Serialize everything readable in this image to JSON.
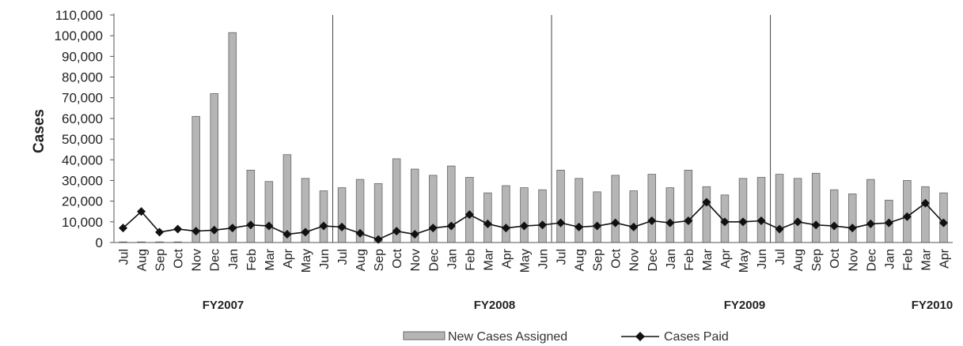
{
  "chart_data": {
    "type": "bar",
    "title": "",
    "xlabel": "",
    "ylabel": "Cases",
    "ylim": [
      0,
      110000
    ],
    "y_ticks": [
      "0",
      "10,000",
      "20,000",
      "30,000",
      "40,000",
      "50,000",
      "60,000",
      "70,000",
      "80,000",
      "90,000",
      "100,000",
      "110,000"
    ],
    "y_tick_values": [
      0,
      10000,
      20000,
      30000,
      40000,
      50000,
      60000,
      70000,
      80000,
      90000,
      100000,
      110000
    ],
    "categories": [
      "Jul",
      "Aug",
      "Sep",
      "Oct",
      "Nov",
      "Dec",
      "Jan",
      "Feb",
      "Mar",
      "Apr",
      "May",
      "Jun",
      "Jul",
      "Aug",
      "Sep",
      "Oct",
      "Nov",
      "Dec",
      "Jan",
      "Feb",
      "Mar",
      "Apr",
      "May",
      "Jun",
      "Jul",
      "Aug",
      "Sep",
      "Oct",
      "Nov",
      "Dec",
      "Jan",
      "Feb",
      "Mar",
      "Apr",
      "May",
      "Jun",
      "Jul",
      "Aug",
      "Sep",
      "Oct",
      "Nov",
      "Dec",
      "Jan",
      "Feb",
      "Mar",
      "Apr"
    ],
    "fiscal_years": [
      {
        "label": "FY2007",
        "start": 0,
        "end": 11
      },
      {
        "label": "FY2008",
        "start": 12,
        "end": 23
      },
      {
        "label": "FY2009",
        "start": 24,
        "end": 35
      },
      {
        "label": "FY2010",
        "start": 36,
        "end": 45
      }
    ],
    "series": [
      {
        "name": "New Cases Assigned",
        "kind": "bar",
        "color": "#b5b5b5",
        "values": [
          0,
          0,
          0,
          0,
          61000,
          72000,
          101500,
          35000,
          29500,
          42500,
          31000,
          25000,
          26500,
          30500,
          28500,
          40500,
          35500,
          32500,
          37000,
          31500,
          24000,
          27500,
          26500,
          25500,
          35000,
          31000,
          24500,
          32500,
          25000,
          33000,
          26500,
          35000,
          27000,
          23000,
          31000,
          31500,
          33000,
          31000,
          33500,
          25500,
          23500,
          30500,
          20500,
          30000,
          27000,
          24000
        ]
      },
      {
        "name": "Cases Paid",
        "kind": "line",
        "color": "#111111",
        "values": [
          7000,
          15000,
          5000,
          6500,
          5500,
          6000,
          7000,
          8500,
          8000,
          4000,
          5000,
          8000,
          7500,
          4500,
          1500,
          5500,
          4000,
          7000,
          8000,
          13500,
          9000,
          7000,
          8000,
          8500,
          9500,
          7500,
          8000,
          9500,
          7500,
          10500,
          9500,
          10500,
          19500,
          10000,
          10000,
          10500,
          6500,
          10000,
          8500,
          8000,
          7000,
          9000,
          9500,
          12500,
          19000,
          9500
        ]
      }
    ],
    "legend": {
      "placement": "bottom"
    },
    "grid": false
  }
}
